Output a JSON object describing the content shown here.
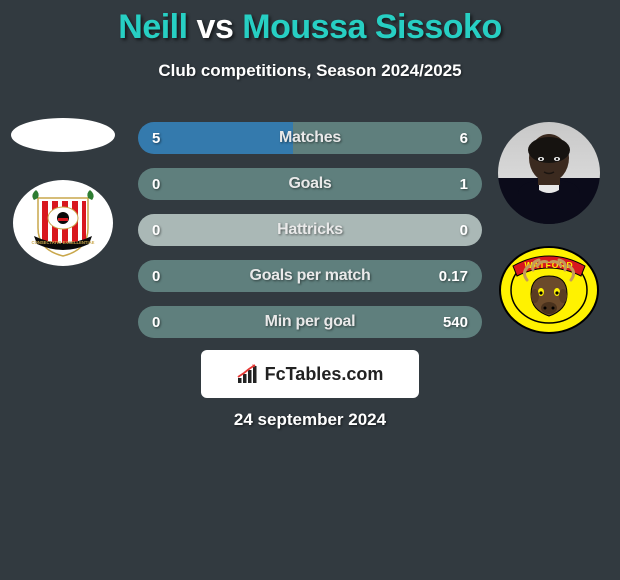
{
  "title": {
    "player1": "Neill",
    "player2": "Moussa Sissoko",
    "player1_color": "#27cfc3",
    "vs_color": "#ffffff"
  },
  "subtitle": "Club competitions, Season 2024/2025",
  "bars": [
    {
      "label": "Matches",
      "left": "5",
      "right": "6",
      "left_pct": 45,
      "right_pct": 55
    },
    {
      "label": "Goals",
      "left": "0",
      "right": "1",
      "left_pct": 0,
      "right_pct": 100
    },
    {
      "label": "Hattricks",
      "left": "0",
      "right": "0",
      "left_pct": 0,
      "right_pct": 0
    },
    {
      "label": "Goals per match",
      "left": "0",
      "right": "0.17",
      "left_pct": 0,
      "right_pct": 100
    },
    {
      "label": "Min per goal",
      "left": "0",
      "right": "540",
      "left_pct": 0,
      "right_pct": 100
    }
  ],
  "colors": {
    "left_fill": "#347aad",
    "right_fill": "#5f7f7d",
    "empty_fill": "#aab8b6",
    "background": "#323a40"
  },
  "brand": "FcTables.com",
  "date": "24 september 2024",
  "left_side": {
    "placeholder": "blank-ellipse",
    "crest": "sunderland"
  },
  "right_side": {
    "player": "Moussa Sissoko",
    "crest": "watford"
  },
  "watford_colors": {
    "outer": "#fff200",
    "banner": "#d8171e",
    "moose_body": "#6b4a2b",
    "moose_antler": "#c49a5a"
  },
  "sunderland_colors": {
    "shield_bg": "#ffffff",
    "stripe": "#d8171e",
    "ribbon": "#0a0a0a",
    "ribbon_text": "#c9a74b"
  }
}
